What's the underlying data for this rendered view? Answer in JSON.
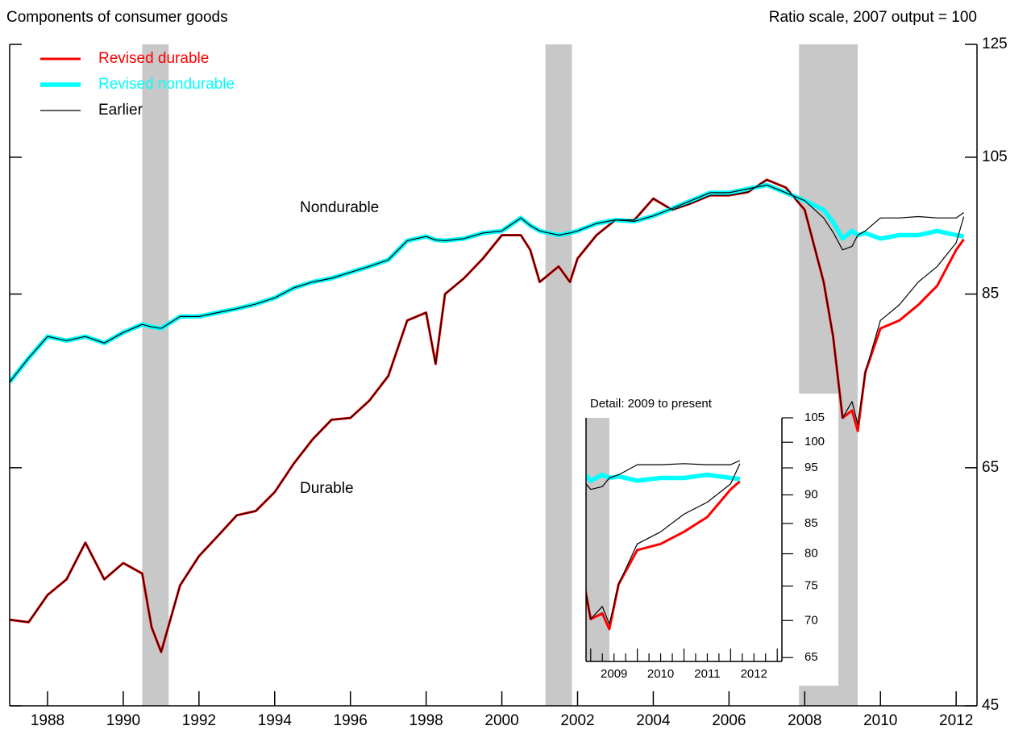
{
  "chart_data": {
    "type": "line",
    "title": "Components of consumer goods",
    "subtitle": "Ratio scale, 2007 output = 100",
    "log_scale": true,
    "legend": "top-left",
    "annotations": [
      "Nondurable",
      "Durable"
    ],
    "x": [
      1987,
      1987.5,
      1988,
      1988.5,
      1989,
      1989.5,
      1990,
      1990.5,
      1990.75,
      1991,
      1991.5,
      1992,
      1992.5,
      1993,
      1993.5,
      1994,
      1994.5,
      1995,
      1995.5,
      1996,
      1996.5,
      1997,
      1997.5,
      1998,
      1998.25,
      1998.5,
      1999,
      1999.5,
      2000,
      2000.5,
      2000.75,
      2001,
      2001.5,
      2001.8,
      2002,
      2002.5,
      2003,
      2003.5,
      2004,
      2004.5,
      2005,
      2005.5,
      2006,
      2006.5,
      2007,
      2007.5,
      2008,
      2008.5,
      2008.75,
      2009,
      2009.25,
      2009.4,
      2009.6,
      2010,
      2010.5,
      2011,
      2011.5,
      2012,
      2012.2
    ],
    "series": [
      {
        "name": "Revised durable",
        "color": "#ff0000",
        "values": [
          51.4,
          51.2,
          53.4,
          54.7,
          57.9,
          54.7,
          56.1,
          55.2,
          50.8,
          48.9,
          54.2,
          56.7,
          58.5,
          60.4,
          60.8,
          62.6,
          65.4,
          67.9,
          70.0,
          70.2,
          72.1,
          74.9,
          81.6,
          82.6,
          76.3,
          85.0,
          87.1,
          89.8,
          93.1,
          93.1,
          91.0,
          86.6,
          88.7,
          86.6,
          89.8,
          93.1,
          95.3,
          95.3,
          98.5,
          96.8,
          97.8,
          99.0,
          99.0,
          99.5,
          101.4,
          100.2,
          96.8,
          86.6,
          79.6,
          70.2,
          71.0,
          68.8,
          75.3,
          80.6,
          81.6,
          83.6,
          86.1,
          91.0,
          92.5
        ]
      },
      {
        "name": "Revised nondurable",
        "color": "#00ffff",
        "values": [
          74.2,
          77.0,
          79.6,
          79.1,
          79.6,
          78.8,
          80.1,
          81.1,
          80.8,
          80.6,
          82.1,
          82.1,
          82.6,
          83.1,
          83.7,
          84.5,
          85.8,
          86.6,
          87.1,
          87.9,
          88.7,
          89.6,
          92.3,
          92.9,
          92.4,
          92.3,
          92.6,
          93.4,
          93.7,
          95.6,
          94.5,
          93.7,
          93.1,
          93.4,
          93.7,
          94.8,
          95.3,
          95.1,
          95.9,
          97.0,
          98.2,
          99.4,
          99.4,
          100.0,
          100.6,
          99.4,
          98.2,
          96.8,
          95.0,
          92.6,
          93.7,
          93.1,
          93.4,
          92.6,
          93.1,
          93.1,
          93.7,
          93.1,
          92.9
        ]
      },
      {
        "name": "Earlier",
        "color": "#000000",
        "lines": [
          [
            51.4,
            51.2,
            53.4,
            54.7,
            57.9,
            54.7,
            56.1,
            55.2,
            50.8,
            48.9,
            54.2,
            56.7,
            58.5,
            60.4,
            60.8,
            62.6,
            65.4,
            67.9,
            70.0,
            70.2,
            72.1,
            74.9,
            81.6,
            82.6,
            76.3,
            85.0,
            87.1,
            89.8,
            93.1,
            93.1,
            91.0,
            86.6,
            88.7,
            86.6,
            89.8,
            93.1,
            95.3,
            95.3,
            98.5,
            96.8,
            97.8,
            99.0,
            99.0,
            99.5,
            101.4,
            100.2,
            96.8,
            86.6,
            79.6,
            70.2,
            72.0,
            69.5,
            75.3,
            81.6,
            83.6,
            86.6,
            88.7,
            92.0,
            95.8
          ],
          [
            74.2,
            77.0,
            79.6,
            79.1,
            79.6,
            78.8,
            80.1,
            81.1,
            80.8,
            80.6,
            82.1,
            82.1,
            82.6,
            83.1,
            83.7,
            84.5,
            85.8,
            86.6,
            87.1,
            87.9,
            88.7,
            89.6,
            92.3,
            92.9,
            92.4,
            92.3,
            92.6,
            93.4,
            93.7,
            95.6,
            94.5,
            93.7,
            93.1,
            93.4,
            93.7,
            94.8,
            95.3,
            95.1,
            95.9,
            97.0,
            98.2,
            99.4,
            99.4,
            100.0,
            100.6,
            99.4,
            98.2,
            95.6,
            93.5,
            91.0,
            91.5,
            93.1,
            93.7,
            95.6,
            95.6,
            95.8,
            95.6,
            95.6,
            96.4
          ]
        ]
      }
    ],
    "recessions": [
      [
        1990.5,
        1991.2
      ],
      [
        2001.15,
        2001.85
      ],
      [
        2007.85,
        2009.4
      ]
    ],
    "recession_color": "#c8c8c8",
    "xlim": [
      1987,
      2012.55
    ],
    "xticks": [
      1988,
      1990,
      1992,
      1994,
      1996,
      1998,
      2000,
      2002,
      2004,
      2006,
      2008,
      2010,
      2012
    ],
    "ylim": [
      45,
      125
    ],
    "yticks": [
      45,
      65,
      85,
      105,
      125
    ],
    "inset": {
      "title": "Detail: 2009 to present",
      "xlim": [
        2008.9,
        2013.1
      ],
      "xticks": [
        2009,
        2010,
        2011,
        2012
      ],
      "ylim": [
        64.5,
        105
      ],
      "yticks": [
        65,
        70,
        75,
        80,
        85,
        90,
        95,
        100,
        105
      ]
    }
  }
}
